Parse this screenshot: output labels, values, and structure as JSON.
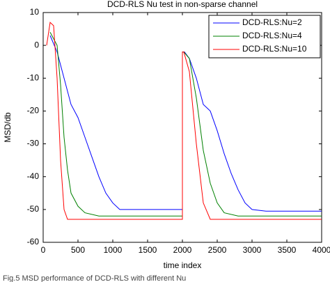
{
  "chart_data": {
    "type": "line",
    "title": "DCD-RLS Nu test in non-sparse channel",
    "x_label": "time index",
    "y_label": "MSD/db",
    "caption": "Fig.5 MSD performance of DCD-RLS with different Nu",
    "xlim": [
      0,
      4000
    ],
    "xticks": [
      0,
      500,
      1000,
      1500,
      2000,
      2500,
      3000,
      3500,
      4000
    ],
    "ylim": [
      -60,
      10
    ],
    "yticks": [
      10,
      0,
      -10,
      -20,
      -30,
      -40,
      -50,
      -60
    ],
    "legend": "upper right",
    "series": [
      {
        "name": "DCD-RLS:Nu=2",
        "color": "#0000ff",
        "x": [
          100,
          200,
          300,
          400,
          500,
          600,
          700,
          800,
          900,
          1000,
          1100,
          2000,
          2000,
          2030,
          2100,
          2200,
          2300,
          2400,
          2500,
          2600,
          2700,
          2800,
          2900,
          3000,
          3200,
          4000
        ],
        "values": [
          3,
          -2,
          -10,
          -18,
          -22,
          -28,
          -34,
          -40,
          -45,
          -48,
          -50,
          -50,
          -2,
          -2,
          -4,
          -10,
          -18,
          -20,
          -26,
          -33,
          -39,
          -44,
          -48,
          -50,
          -50.5,
          -50.5
        ]
      },
      {
        "name": "DCD-RLS:Nu=4",
        "color": "#008000",
        "x": [
          100,
          200,
          250,
          300,
          350,
          400,
          500,
          600,
          800,
          2000,
          2000,
          2020,
          2100,
          2200,
          2300,
          2400,
          2500,
          2600,
          2800,
          4000
        ],
        "values": [
          4,
          0,
          -12,
          -28,
          -38,
          -45,
          -49,
          -51,
          -52,
          -52,
          -2,
          -2,
          -4,
          -16,
          -32,
          -42,
          -48,
          -51,
          -52,
          -52
        ]
      },
      {
        "name": "DCD-RLS:Nu=10",
        "color": "#ff0000",
        "x": [
          50,
          100,
          150,
          200,
          250,
          300,
          350,
          400,
          2000,
          2000,
          2020,
          2100,
          2200,
          2300,
          2400,
          4000
        ],
        "values": [
          0,
          7,
          6,
          -10,
          -35,
          -50,
          -53,
          -53,
          -53,
          -2,
          -2,
          -8,
          -30,
          -48,
          -53,
          -53
        ]
      }
    ]
  }
}
